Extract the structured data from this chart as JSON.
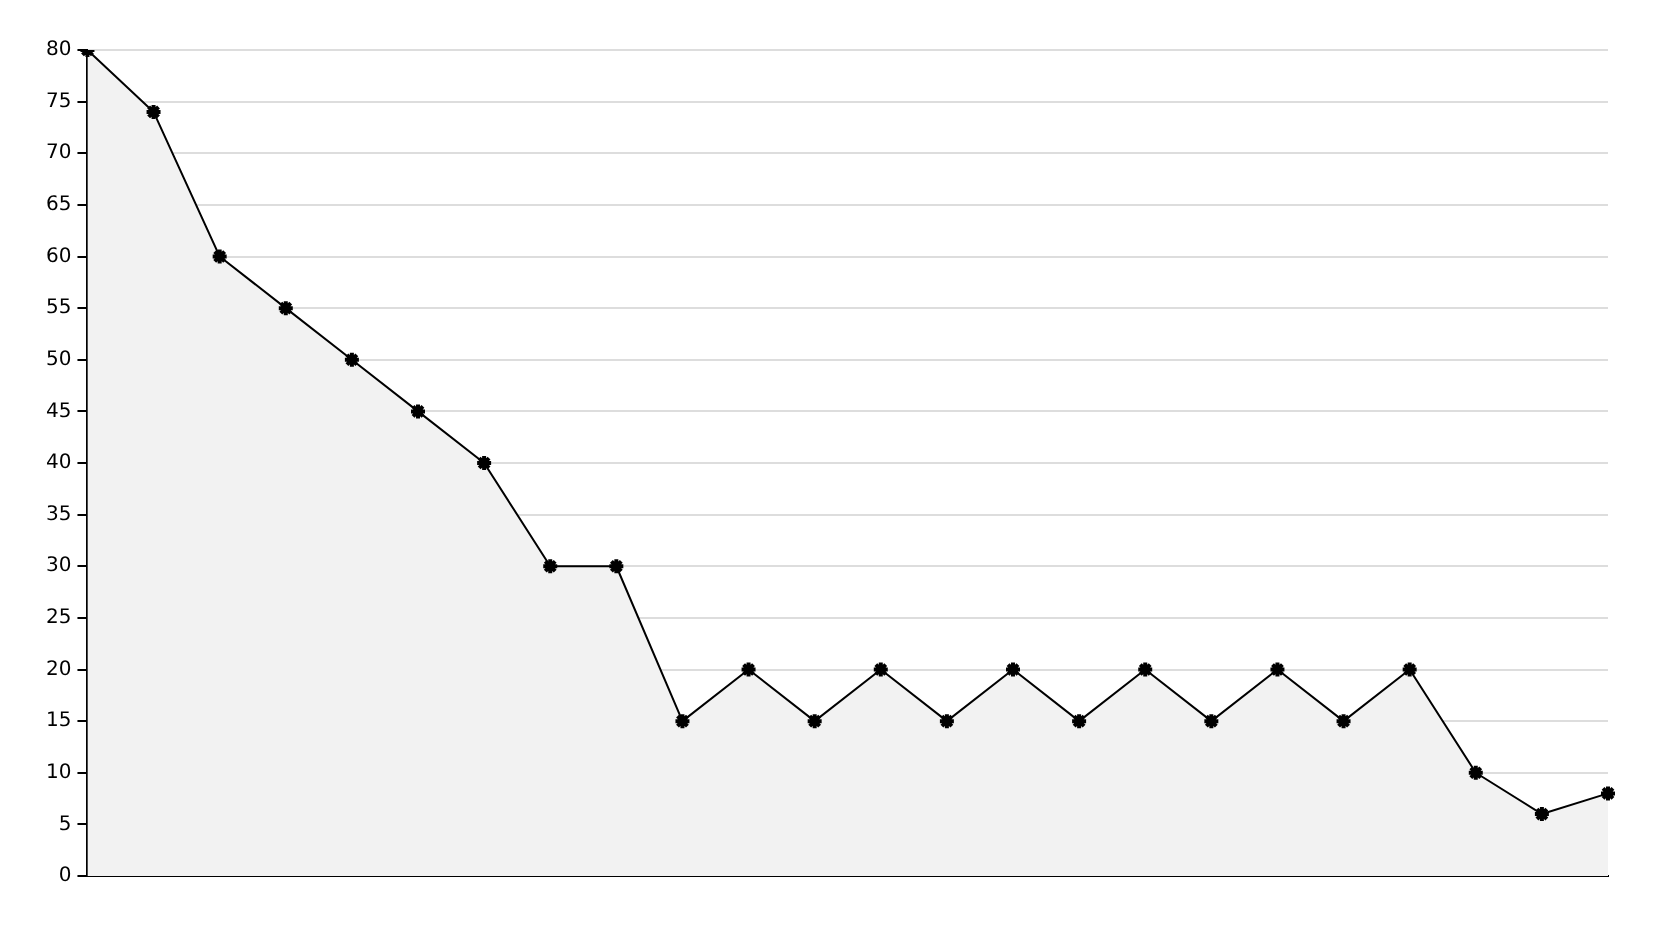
{
  "chart_data": {
    "type": "area",
    "categories": [
      null,
      null,
      null,
      null,
      null,
      null,
      null,
      null,
      null,
      null,
      null,
      null,
      null,
      null,
      null,
      null,
      null,
      null,
      null,
      null,
      null,
      null,
      null,
      null
    ],
    "series": [
      {
        "color": "#000000",
        "values": [
          80,
          74,
          60,
          55,
          50,
          45,
          40,
          30,
          30,
          15,
          20,
          15,
          20,
          15,
          20,
          15,
          20,
          15,
          20,
          15,
          20,
          10,
          6,
          8
        ]
      }
    ],
    "ylim": [
      0,
      80
    ],
    "yticks": [
      0,
      5,
      10,
      15,
      20,
      25,
      30,
      35,
      40,
      45,
      50,
      55,
      60,
      65,
      70,
      75,
      80
    ],
    "grid": "y",
    "legend": false,
    "marker": "cross",
    "line_style": "solid",
    "tick_labels": "y"
  }
}
